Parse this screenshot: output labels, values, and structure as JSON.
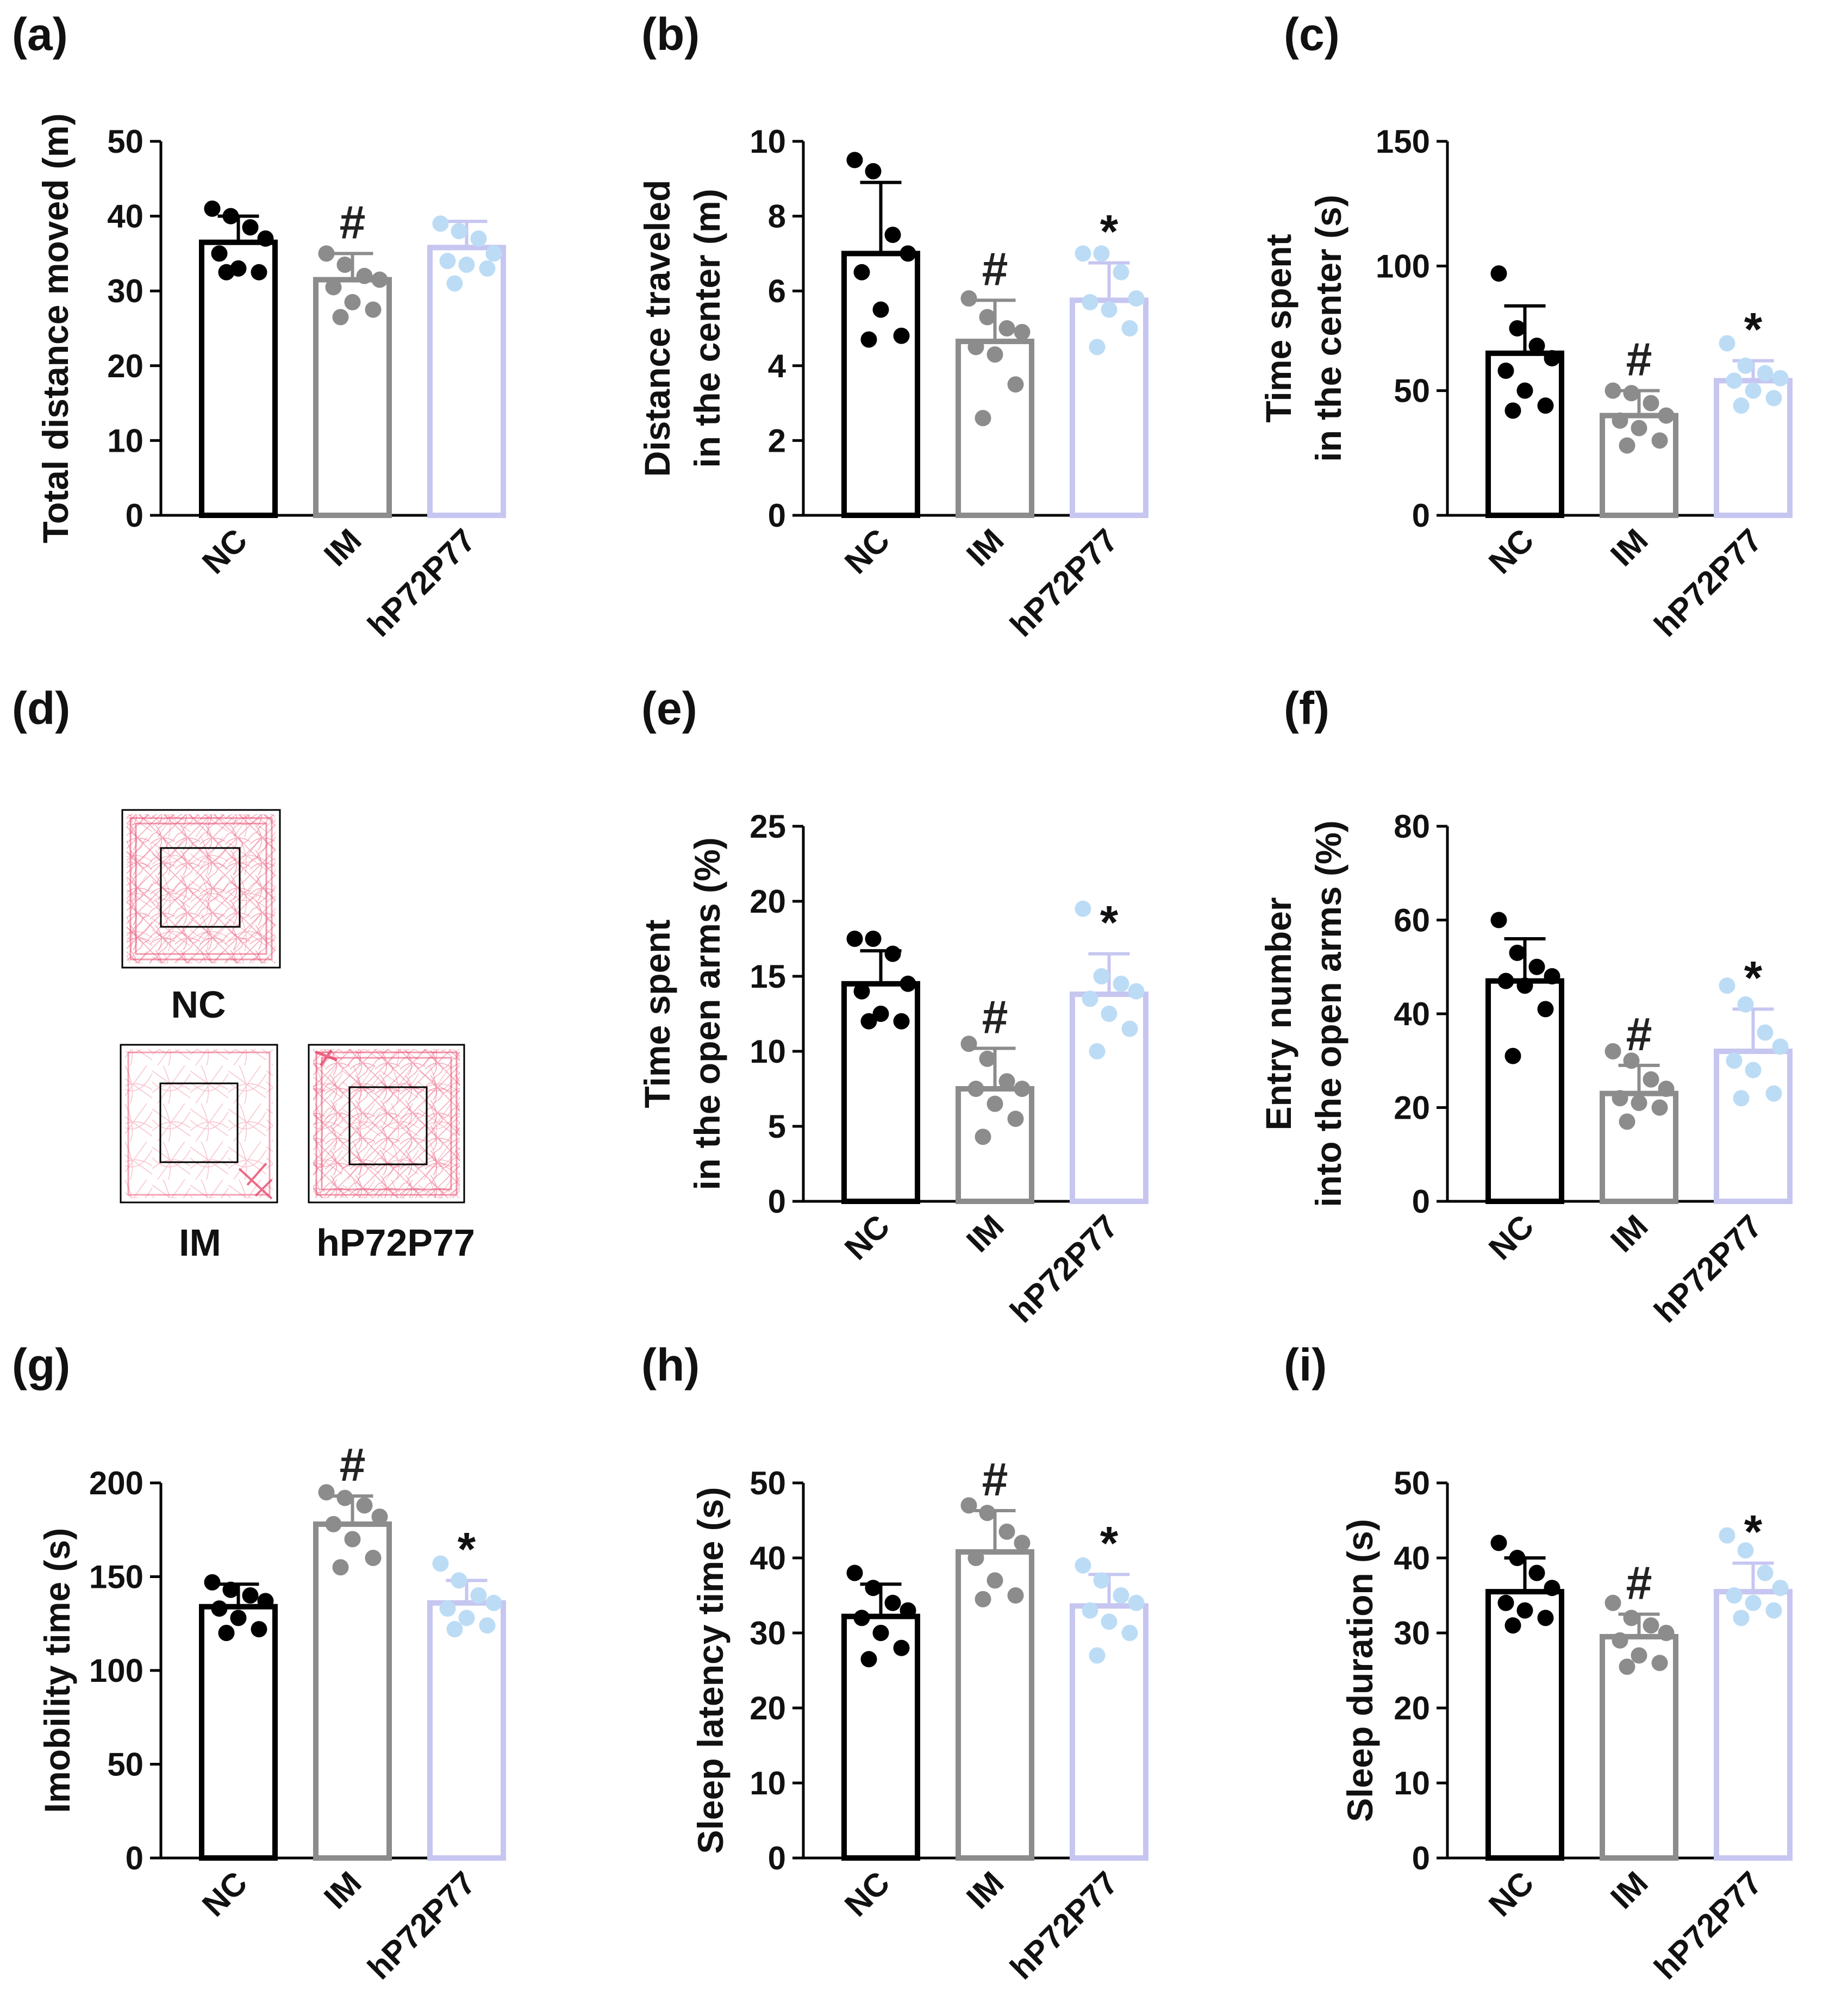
{
  "colors": {
    "NC": "#000000",
    "IM": "#8c8c8c",
    "hP72P77": "#c6c6f1",
    "hP72P77_dots": "#bcdcf5",
    "trace": "#e8476b"
  },
  "chart_data": [
    {
      "panel": "(a)",
      "type": "bar",
      "categories": [
        "NC",
        "IM",
        "hP72P77"
      ],
      "ylabel": [
        "Total distance moved (m)"
      ],
      "ylim": [
        0,
        50
      ],
      "yticks": [
        0,
        10,
        20,
        30,
        40,
        50
      ],
      "means": [
        36.5,
        31.5,
        35.8
      ],
      "errors": [
        3.5,
        3.5,
        3.5
      ],
      "points": [
        [
          41,
          40,
          38.5,
          37,
          35,
          33,
          32.5,
          32.5
        ],
        [
          35,
          33.5,
          32,
          31.5,
          30.5,
          28.5,
          27.5,
          26.5
        ],
        [
          39,
          38,
          37,
          35,
          34,
          33.5,
          33,
          31
        ]
      ],
      "annotations": [
        "",
        "#",
        ""
      ]
    },
    {
      "panel": "(b)",
      "type": "bar",
      "categories": [
        "NC",
        "IM",
        "hP72P77"
      ],
      "ylabel": [
        "Distance traveled",
        "in the center (m)"
      ],
      "ylim": [
        0,
        10
      ],
      "yticks": [
        0,
        2,
        4,
        6,
        8,
        10
      ],
      "means": [
        7.0,
        4.65,
        5.75
      ],
      "errors": [
        1.9,
        1.1,
        1.0
      ],
      "points": [
        [
          9.5,
          9.2,
          7.5,
          7,
          6.5,
          5.5,
          4.8,
          4.7
        ],
        [
          5.8,
          5.3,
          5,
          4.9,
          4.5,
          4.3,
          3.5,
          2.6
        ],
        [
          7,
          7,
          6.5,
          5.8,
          5.7,
          5.5,
          5,
          4.5
        ]
      ],
      "annotations": [
        "",
        "#",
        "*"
      ]
    },
    {
      "panel": "(c)",
      "type": "bar",
      "categories": [
        "NC",
        "IM",
        "hP72P77"
      ],
      "ylabel": [
        "Time spent",
        "in the center (s)"
      ],
      "ylim": [
        0,
        150
      ],
      "yticks": [
        0,
        50,
        100,
        150
      ],
      "means": [
        65,
        40,
        54
      ],
      "errors": [
        19,
        10,
        8
      ],
      "points": [
        [
          97,
          75,
          68,
          63,
          58,
          50,
          44,
          42
        ],
        [
          50,
          49,
          45,
          40,
          38,
          35,
          30,
          28
        ],
        [
          69,
          60,
          57,
          55,
          54,
          50,
          47,
          44
        ]
      ],
      "annotations": [
        "",
        "#",
        "*"
      ]
    },
    {
      "panel": "(e)",
      "type": "bar",
      "categories": [
        "NC",
        "IM",
        "hP72P77"
      ],
      "ylabel": [
        "Time spent",
        "in the open arms (%)"
      ],
      "ylim": [
        0,
        25
      ],
      "yticks": [
        0,
        5,
        10,
        15,
        20,
        25
      ],
      "means": [
        14.5,
        7.5,
        13.8
      ],
      "errors": [
        2.2,
        2.7,
        2.7
      ],
      "points": [
        [
          17.5,
          17.5,
          16.5,
          14.5,
          14,
          12.5,
          12,
          12
        ],
        [
          10.5,
          9.5,
          8,
          7.5,
          7.5,
          6.5,
          5.5,
          4.3
        ],
        [
          19.5,
          15,
          14.5,
          14,
          13.5,
          12.5,
          11.5,
          10
        ]
      ],
      "annotations": [
        "",
        "#",
        "*"
      ]
    },
    {
      "panel": "(f)",
      "type": "bar",
      "categories": [
        "NC",
        "IM",
        "hP72P77"
      ],
      "ylabel": [
        "Entry number",
        "into the open arms (%)"
      ],
      "ylim": [
        0,
        80
      ],
      "yticks": [
        0,
        20,
        40,
        60,
        80
      ],
      "means": [
        47,
        23,
        32
      ],
      "errors": [
        9,
        6,
        9
      ],
      "points": [
        [
          60,
          53,
          50,
          48,
          47,
          46,
          41,
          31
        ],
        [
          32,
          30,
          26,
          24,
          22,
          21,
          20,
          17
        ],
        [
          46,
          42,
          36,
          33,
          30,
          28,
          23,
          22
        ]
      ],
      "annotations": [
        "",
        "#",
        "*"
      ]
    },
    {
      "panel": "(g)",
      "type": "bar",
      "categories": [
        "NC",
        "IM",
        "hP72P77"
      ],
      "ylabel": [
        "Imobility time (s)"
      ],
      "ylim": [
        0,
        200
      ],
      "yticks": [
        0,
        50,
        100,
        150,
        200
      ],
      "means": [
        134,
        178,
        136
      ],
      "errors": [
        12,
        15,
        12
      ],
      "points": [
        [
          147,
          143,
          140,
          137,
          133,
          128,
          122,
          120
        ],
        [
          195,
          192,
          188,
          182,
          178,
          170,
          160,
          155
        ],
        [
          157,
          148,
          140,
          136,
          133,
          128,
          124,
          122
        ]
      ],
      "annotations": [
        "",
        "#",
        "*"
      ]
    },
    {
      "panel": "(h)",
      "type": "bar",
      "categories": [
        "NC",
        "IM",
        "hP72P77"
      ],
      "ylabel": [
        "Sleep latency time (s)"
      ],
      "ylim": [
        0,
        50
      ],
      "yticks": [
        0,
        10,
        20,
        30,
        40,
        50
      ],
      "means": [
        32.2,
        40.8,
        33.6
      ],
      "errors": [
        4.3,
        5.5,
        4.2
      ],
      "points": [
        [
          38,
          36,
          34,
          33,
          32,
          30,
          28,
          26.5
        ],
        [
          47,
          46,
          43.5,
          42,
          40,
          37,
          35,
          34.5
        ],
        [
          39,
          37,
          35,
          34,
          33,
          31.5,
          30,
          27
        ]
      ],
      "annotations": [
        "",
        "#",
        "*"
      ]
    },
    {
      "panel": "(i)",
      "type": "bar",
      "categories": [
        "NC",
        "IM",
        "hP72P77"
      ],
      "ylabel": [
        "Sleep duration (s)"
      ],
      "ylim": [
        0,
        50
      ],
      "yticks": [
        0,
        10,
        20,
        30,
        40,
        50
      ],
      "means": [
        35.5,
        29.5,
        35.5
      ],
      "errors": [
        4.5,
        3.0,
        3.8
      ],
      "points": [
        [
          42,
          40,
          38,
          36,
          34,
          33,
          32,
          31
        ],
        [
          34,
          32,
          31,
          30,
          29,
          27,
          26,
          25.5
        ],
        [
          43,
          41,
          38,
          36,
          35,
          34,
          33,
          32
        ]
      ],
      "annotations": [
        "",
        "#",
        "*"
      ]
    }
  ],
  "traces": {
    "panel": "(d)",
    "labels": [
      "NC",
      "IM",
      "hP72P77"
    ]
  }
}
